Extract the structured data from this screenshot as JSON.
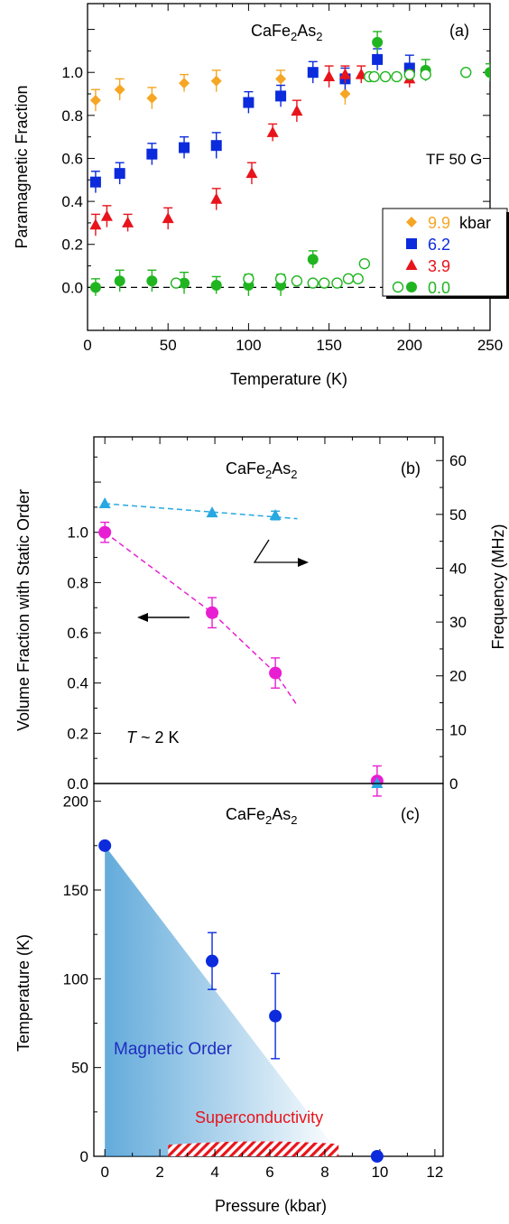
{
  "chart_data": [
    {
      "panel": "(a)",
      "type": "scatter",
      "title": "CaFe2As2",
      "title_parts": [
        "CaFe",
        "2",
        "As",
        "2"
      ],
      "annotation": "TF 50 G",
      "xlabel": "Temperature (K)",
      "ylabel": "Paramagnetic Fraction",
      "xlim": [
        0,
        250
      ],
      "ylim": [
        -0.2,
        1.32
      ],
      "xticks": [
        0,
        50,
        100,
        150,
        200,
        250
      ],
      "yticks": [
        0.0,
        0.2,
        0.4,
        0.6,
        0.8,
        1.0
      ],
      "ytick_labels": [
        "0.0",
        "0.2",
        "0.4",
        "0.6",
        "0.8",
        "1.0"
      ],
      "reference_line_y": 0.0,
      "legend_unit": "kbar",
      "legend_position": "right",
      "series": [
        {
          "name": "9.9",
          "color": "#f5a623",
          "marker": "diamond",
          "x": [
            5,
            20,
            40,
            60,
            80,
            120,
            160,
            200
          ],
          "y": [
            0.87,
            0.92,
            0.88,
            0.95,
            0.96,
            0.97,
            0.9,
            0.99
          ],
          "err": [
            0.05,
            0.05,
            0.05,
            0.04,
            0.05,
            0.04,
            0.05,
            0.05
          ]
        },
        {
          "name": "6.2",
          "color": "#0b2bdc",
          "marker": "square",
          "x": [
            5,
            20,
            40,
            60,
            80,
            100,
            120,
            140,
            160,
            180,
            200
          ],
          "y": [
            0.49,
            0.53,
            0.62,
            0.65,
            0.66,
            0.86,
            0.89,
            1.0,
            0.97,
            1.06,
            1.02
          ],
          "err": [
            0.05,
            0.05,
            0.05,
            0.05,
            0.06,
            0.05,
            0.05,
            0.05,
            0.05,
            0.05,
            0.06
          ]
        },
        {
          "name": "3.9",
          "color": "#e8141b",
          "marker": "triangle",
          "x": [
            5,
            12,
            25,
            50,
            80,
            102,
            115,
            130,
            150,
            160,
            170,
            200
          ],
          "y": [
            0.29,
            0.33,
            0.3,
            0.32,
            0.41,
            0.53,
            0.72,
            0.82,
            0.98,
            0.99,
            0.99,
            0.97
          ],
          "err": [
            0.05,
            0.05,
            0.04,
            0.05,
            0.05,
            0.05,
            0.04,
            0.05,
            0.05,
            0.04,
            0.04,
            0.04
          ]
        },
        {
          "name": "0.0",
          "color": "#20b520",
          "marker": "circle-filled",
          "x": [
            5,
            20,
            40,
            60,
            80,
            100,
            120,
            140,
            180,
            210,
            250
          ],
          "y": [
            0.0,
            0.03,
            0.03,
            0.02,
            0.01,
            0.01,
            0.01,
            0.13,
            1.14,
            1.01,
            1.0
          ],
          "err": [
            0.04,
            0.05,
            0.05,
            0.05,
            0.04,
            0.05,
            0.05,
            0.04,
            0.05,
            0.05,
            0.04
          ]
        },
        {
          "name": "0.0",
          "color": "#20b520",
          "marker": "circle-open",
          "x": [
            55,
            100,
            120,
            130,
            140,
            147,
            155,
            162,
            168,
            172,
            175,
            178,
            185,
            192,
            200,
            210,
            235
          ],
          "y": [
            0.02,
            0.04,
            0.04,
            0.03,
            0.02,
            0.02,
            0.02,
            0.04,
            0.04,
            0.11,
            0.98,
            0.98,
            0.98,
            0.98,
            0.99,
            0.99,
            1.0
          ],
          "err": []
        }
      ]
    },
    {
      "panel": "(b)",
      "type": "scatter",
      "title": "CaFe2As2",
      "title_parts": [
        "CaFe",
        "2",
        "As",
        "2"
      ],
      "annotation_italic": "T",
      "annotation_rest": " ~ 2 K",
      "ylabel": "Volume Fraction with Static Order",
      "ylabel_right": "Frequency (MHz)",
      "xlim": [
        -0.4,
        12.3
      ],
      "ylim": [
        0,
        1.38
      ],
      "ylim_right": [
        0,
        64.4
      ],
      "yticks": [
        0.0,
        0.2,
        0.4,
        0.6,
        0.8,
        1.0
      ],
      "ytick_labels": [
        "0.0",
        "0.2",
        "0.4",
        "0.6",
        "0.8",
        "1.0"
      ],
      "yticks_right": [
        0,
        10,
        20,
        30,
        40,
        50,
        60
      ],
      "xticks": [
        0,
        2,
        4,
        6,
        8,
        10,
        12
      ],
      "series": [
        {
          "name": "",
          "axis": "left",
          "color": "#e81ed2",
          "marker": "circle",
          "x": [
            0,
            3.9,
            6.2,
            9.9
          ],
          "y": [
            1.0,
            0.68,
            0.44,
            0.01
          ],
          "err": [
            0.04,
            0.06,
            0.06,
            0.06
          ]
        },
        {
          "name": "",
          "axis": "right",
          "color": "#26a8e0",
          "marker": "triangle",
          "x": [
            0,
            3.9,
            6.2,
            9.9
          ],
          "y": [
            52.0,
            50.3,
            49.8,
            0.0
          ],
          "err": [
            0,
            0,
            0.8,
            0
          ]
        }
      ],
      "fit_left": {
        "x": [
          0,
          3.9,
          6.2,
          7.0
        ],
        "y": [
          1.0,
          0.68,
          0.44,
          0.31
        ],
        "color": "#e81ed2"
      },
      "fit_right": {
        "x": [
          0,
          7.0
        ],
        "y": [
          52.0,
          49.2
        ],
        "color": "#26a8e0"
      }
    },
    {
      "panel": "(c)",
      "type": "scatter",
      "title": "CaFe2As2",
      "title_parts": [
        "CaFe",
        "2",
        "As",
        "2"
      ],
      "xlabel": "Pressure (kbar)",
      "ylabel": "Temperature (K)",
      "xlim": [
        -0.4,
        12.3
      ],
      "ylim": [
        0,
        210
      ],
      "xticks": [
        0,
        2,
        4,
        6,
        8,
        10,
        12
      ],
      "yticks": [
        0,
        50,
        100,
        150,
        200
      ],
      "series": [
        {
          "name": "",
          "color": "#0b2bdc",
          "marker": "circle",
          "x": [
            0,
            3.9,
            6.2,
            9.9
          ],
          "y": [
            175,
            110,
            79,
            0
          ],
          "err_low": [
            0,
            16,
            24,
            0
          ],
          "err_high": [
            0,
            16,
            24,
            0
          ]
        }
      ],
      "region_magnetic_label": "Magnetic Order",
      "region_magnetic_color": "#2f8fcf",
      "region_magnetic_boundary": {
        "x": [
          0,
          8.6
        ],
        "y": [
          175,
          0
        ]
      },
      "region_superconductivity_label": "Superconductivity",
      "region_superconductivity_color": "#e8141b",
      "region_superconductivity": {
        "x": [
          2.3,
          8.5
        ],
        "y": [
          0,
          8
        ]
      }
    }
  ]
}
